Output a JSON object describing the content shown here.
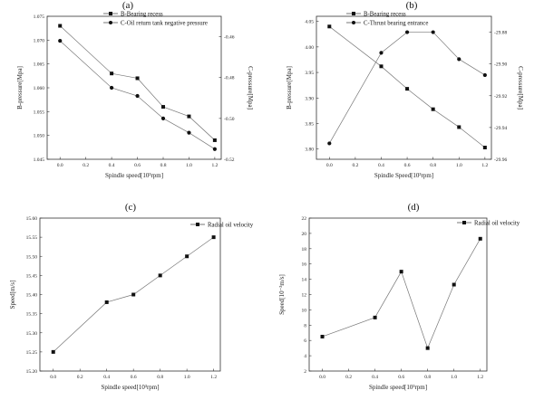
{
  "chart_data": [
    {
      "panel": "(a)",
      "type": "line",
      "x": [
        0.0,
        0.4,
        0.6,
        0.8,
        1.0,
        1.2
      ],
      "xlabel": "Spindle speed[10³rpm]",
      "xlim": [
        -0.1,
        1.25
      ],
      "xticks": [
        "0.0",
        "0.2",
        "0.4",
        "0.6",
        "0.8",
        "1.0",
        "1.2"
      ],
      "ylabel": "B-pressure[Mpa]",
      "ylim": [
        1.045,
        1.075
      ],
      "yticks": [
        "1.045",
        "1.050",
        "1.055",
        "1.060",
        "1.065",
        "1.070",
        "1.075"
      ],
      "y2label": "C-pressure[Mpa]",
      "y2lim": [
        -0.52,
        -0.45
      ],
      "y2ticks": [
        "-0.52",
        "-0.50",
        "-0.48",
        "-0.46"
      ],
      "legend_position": "top-center",
      "series": [
        {
          "name": "B-Bearing recess",
          "marker": "square",
          "axis": "left",
          "values": [
            1.073,
            1.063,
            1.062,
            1.056,
            1.054,
            1.049
          ]
        },
        {
          "name": "C-Oil return tank negative pressure",
          "marker": "circle",
          "axis": "right",
          "values": [
            -0.462,
            -0.485,
            -0.489,
            -0.5,
            -0.507,
            -0.515
          ]
        }
      ]
    },
    {
      "panel": "(b)",
      "type": "line",
      "x": [
        0.0,
        0.4,
        0.6,
        0.8,
        1.0,
        1.2
      ],
      "xlabel": "Spindle Speed[10³rpm]",
      "xlim": [
        -0.1,
        1.25
      ],
      "xticks": [
        "0.0",
        "0.2",
        "0.4",
        "0.6",
        "0.8",
        "1.0",
        "1.2"
      ],
      "ylabel": "B-pressure[Mpa]",
      "ylim": [
        3.78,
        4.06
      ],
      "yticks": [
        "3.80",
        "3.85",
        "3.90",
        "3.95",
        "4.00",
        "4.05"
      ],
      "y2label": "C-pressure[Mpa]",
      "y2lim": [
        -29.96,
        -29.87
      ],
      "y2ticks": [
        "-29.96",
        "-29.94",
        "-29.92",
        "-29.90",
        "-29.88"
      ],
      "legend_position": "top-center",
      "series": [
        {
          "name": "B-Bearing recess",
          "marker": "square",
          "axis": "left",
          "values": [
            4.04,
            3.962,
            3.918,
            3.878,
            3.843,
            3.803
          ]
        },
        {
          "name": "C-Thrust bearing entrance",
          "marker": "circle",
          "axis": "right",
          "values": [
            -29.95,
            -29.893,
            -29.88,
            -29.88,
            -29.897,
            -29.907
          ]
        }
      ]
    },
    {
      "panel": "(c)",
      "type": "line",
      "x": [
        0.0,
        0.4,
        0.6,
        0.8,
        1.0,
        1.2
      ],
      "xlabel": "Spindle speed[10³rpm]",
      "xlim": [
        -0.1,
        1.25
      ],
      "xticks": [
        "0.0",
        "0.2",
        "0.4",
        "0.6",
        "0.8",
        "1.0",
        "1.2"
      ],
      "ylabel": "Speed[m/s]",
      "ylim": [
        15.2,
        15.6
      ],
      "yticks": [
        "15.20",
        "15.25",
        "15.30",
        "15.35",
        "15.40",
        "15.45",
        "15.50",
        "15.55",
        "15.60"
      ],
      "legend_position": "top-center",
      "series": [
        {
          "name": "Radial oil velocity",
          "marker": "square",
          "axis": "left",
          "values": [
            15.25,
            15.38,
            15.4,
            15.45,
            15.5,
            15.55
          ]
        }
      ]
    },
    {
      "panel": "(d)",
      "type": "line",
      "x": [
        0.0,
        0.4,
        0.6,
        0.8,
        1.0,
        1.2
      ],
      "xlabel": "Spindle speed[10³rpm]",
      "xlim": [
        -0.1,
        1.25
      ],
      "xticks": [
        "0.0",
        "0.2",
        "0.4",
        "0.6",
        "0.8",
        "1.0",
        "1.2"
      ],
      "ylabel": "Speed[10⁻³m/s]",
      "ylim": [
        2,
        22
      ],
      "yticks": [
        "2",
        "4",
        "6",
        "8",
        "10",
        "12",
        "14",
        "16",
        "18",
        "20",
        "22"
      ],
      "legend_position": "top-center",
      "series": [
        {
          "name": "Radial oil velocity",
          "marker": "square",
          "axis": "left",
          "values": [
            6.5,
            9.0,
            15.0,
            5.0,
            13.3,
            19.3
          ]
        }
      ]
    }
  ]
}
